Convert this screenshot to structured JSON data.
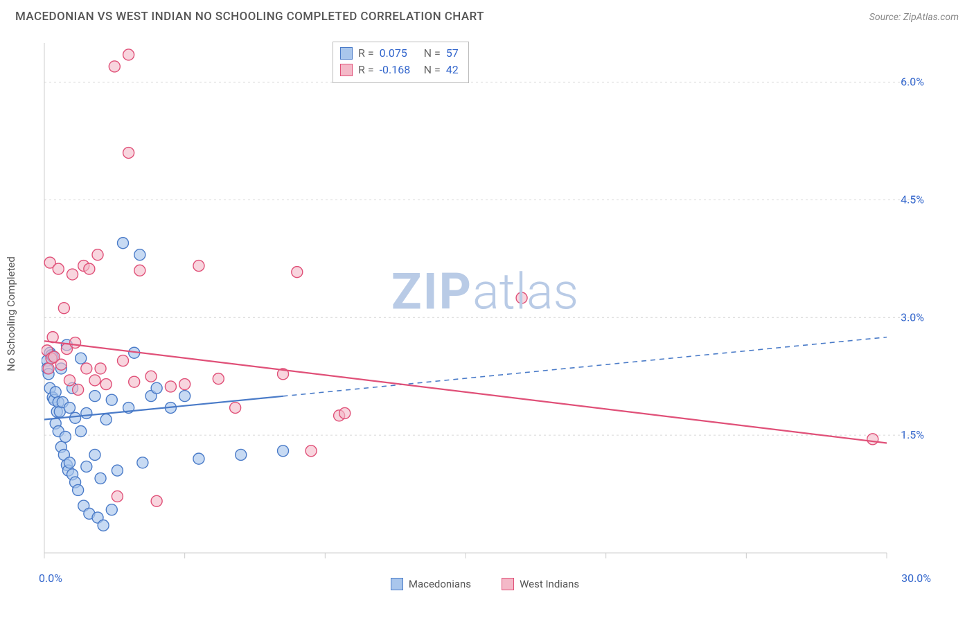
{
  "title": "MACEDONIAN VS WEST INDIAN NO SCHOOLING COMPLETED CORRELATION CHART",
  "source": "Source: ZipAtlas.com",
  "y_axis_label": "No Schooling Completed",
  "watermark": {
    "zip": "ZIP",
    "atlas": "atlas",
    "color": "#b9cbe6",
    "fontsize": 72
  },
  "chart": {
    "type": "scatter-correlation",
    "xlim": [
      0.0,
      30.0
    ],
    "ylim": [
      0.0,
      6.5
    ],
    "x_corner_min": "0.0%",
    "x_corner_max": "30.0%",
    "y_grid": [
      1.5,
      3.0,
      4.5,
      6.0
    ],
    "y_grid_labels": [
      "1.5%",
      "3.0%",
      "4.5%",
      "6.0%"
    ],
    "x_ticks": [
      0,
      5,
      10,
      15,
      20,
      25,
      30
    ],
    "grid_color": "#d6d6d6",
    "axis_color": "#cccccc",
    "background": "#ffffff",
    "point_radius": 8,
    "point_stroke_width": 1.4,
    "line_width": 2.2,
    "series": [
      {
        "key": "macedonians",
        "label": "Macedonians",
        "fill": "#a9c6ec",
        "stroke": "#4a7bc8",
        "fill_opacity": 0.65,
        "r_value": "0.075",
        "n_value": "57",
        "trend": {
          "y_at_xmin": 1.7,
          "y_at_xmax": 2.75,
          "solid_until_x": 8.5
        },
        "points": [
          [
            0.1,
            2.45
          ],
          [
            0.1,
            2.35
          ],
          [
            0.15,
            2.28
          ],
          [
            0.2,
            2.55
          ],
          [
            0.2,
            2.1
          ],
          [
            0.25,
            2.52
          ],
          [
            0.3,
            2.5
          ],
          [
            0.3,
            1.98
          ],
          [
            0.35,
            1.95
          ],
          [
            0.4,
            2.05
          ],
          [
            0.4,
            1.65
          ],
          [
            0.45,
            1.8
          ],
          [
            0.5,
            1.92
          ],
          [
            0.5,
            1.55
          ],
          [
            0.55,
            1.8
          ],
          [
            0.6,
            2.35
          ],
          [
            0.6,
            1.35
          ],
          [
            0.65,
            1.92
          ],
          [
            0.7,
            1.25
          ],
          [
            0.75,
            1.48
          ],
          [
            0.8,
            2.65
          ],
          [
            0.8,
            1.12
          ],
          [
            0.85,
            1.05
          ],
          [
            0.9,
            1.85
          ],
          [
            0.9,
            1.15
          ],
          [
            1.0,
            2.1
          ],
          [
            1.0,
            1.0
          ],
          [
            1.1,
            1.72
          ],
          [
            1.1,
            0.9
          ],
          [
            1.2,
            0.8
          ],
          [
            1.3,
            2.48
          ],
          [
            1.3,
            1.55
          ],
          [
            1.4,
            0.6
          ],
          [
            1.5,
            1.78
          ],
          [
            1.5,
            1.1
          ],
          [
            1.6,
            0.5
          ],
          [
            1.8,
            2.0
          ],
          [
            1.8,
            1.25
          ],
          [
            1.9,
            0.45
          ],
          [
            2.0,
            0.95
          ],
          [
            2.1,
            0.35
          ],
          [
            2.2,
            1.7
          ],
          [
            2.4,
            1.95
          ],
          [
            2.4,
            0.55
          ],
          [
            2.6,
            1.05
          ],
          [
            2.8,
            3.95
          ],
          [
            3.0,
            1.85
          ],
          [
            3.2,
            2.55
          ],
          [
            3.4,
            3.8
          ],
          [
            3.5,
            1.15
          ],
          [
            3.8,
            2.0
          ],
          [
            4.0,
            2.1
          ],
          [
            4.5,
            1.85
          ],
          [
            5.0,
            2.0
          ],
          [
            5.5,
            1.2
          ],
          [
            7.0,
            1.25
          ],
          [
            8.5,
            1.3
          ]
        ]
      },
      {
        "key": "west_indians",
        "label": "West Indians",
        "fill": "#f4b9c8",
        "stroke": "#e05078",
        "fill_opacity": 0.6,
        "r_value": "-0.168",
        "n_value": "42",
        "trend": {
          "y_at_xmin": 2.7,
          "y_at_xmax": 1.4,
          "solid_until_x": 30
        },
        "points": [
          [
            0.1,
            2.58
          ],
          [
            0.15,
            2.35
          ],
          [
            0.2,
            3.7
          ],
          [
            0.25,
            2.48
          ],
          [
            0.3,
            2.75
          ],
          [
            0.35,
            2.5
          ],
          [
            0.5,
            3.62
          ],
          [
            0.6,
            2.4
          ],
          [
            0.7,
            3.12
          ],
          [
            0.8,
            2.6
          ],
          [
            0.9,
            2.2
          ],
          [
            1.0,
            3.55
          ],
          [
            1.1,
            2.68
          ],
          [
            1.2,
            2.08
          ],
          [
            1.4,
            3.66
          ],
          [
            1.5,
            2.35
          ],
          [
            1.6,
            3.62
          ],
          [
            1.8,
            2.2
          ],
          [
            1.9,
            3.8
          ],
          [
            2.0,
            2.35
          ],
          [
            2.2,
            2.15
          ],
          [
            2.5,
            6.2
          ],
          [
            2.6,
            0.72
          ],
          [
            2.8,
            2.45
          ],
          [
            3.0,
            5.1
          ],
          [
            3.0,
            6.35
          ],
          [
            3.2,
            2.18
          ],
          [
            3.4,
            3.6
          ],
          [
            3.8,
            2.25
          ],
          [
            4.0,
            0.66
          ],
          [
            4.5,
            2.12
          ],
          [
            5.0,
            2.15
          ],
          [
            5.5,
            3.66
          ],
          [
            6.2,
            2.22
          ],
          [
            6.8,
            1.85
          ],
          [
            8.5,
            2.28
          ],
          [
            9.0,
            3.58
          ],
          [
            9.5,
            1.3
          ],
          [
            10.5,
            1.75
          ],
          [
            10.7,
            1.78
          ],
          [
            17.0,
            3.25
          ],
          [
            29.5,
            1.45
          ]
        ]
      }
    ]
  },
  "legend_bottom": [
    {
      "label": "Macedonians",
      "fill": "#a9c6ec",
      "stroke": "#4a7bc8"
    },
    {
      "label": "West Indians",
      "fill": "#f4b9c8",
      "stroke": "#e05078"
    }
  ],
  "label_color": "#3366cc"
}
